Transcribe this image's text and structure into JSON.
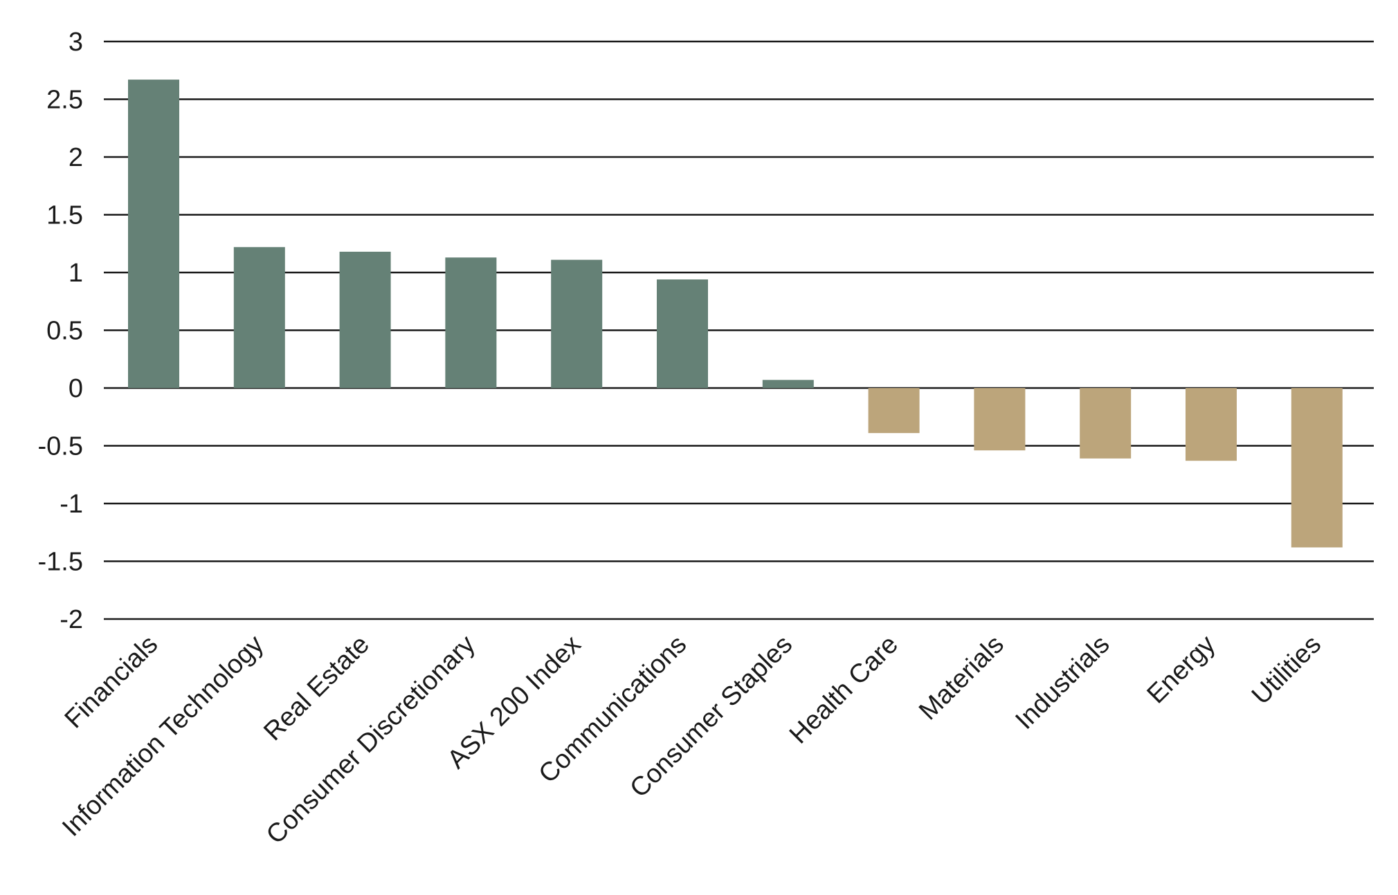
{
  "chart_data": {
    "type": "bar",
    "title": "",
    "xlabel": "",
    "ylabel": "",
    "ylim": [
      -2,
      3
    ],
    "yticks": [
      "3",
      "2.5",
      "2",
      "1.5",
      "1",
      "0.5",
      "0",
      "-0.5",
      "-1",
      "-1.5",
      "-2"
    ],
    "categories": [
      "Financials",
      "Information Technology",
      "Real Estate",
      "Consumer Discretionary",
      "ASX 200 Index",
      "Communications",
      "Consumer Staples",
      "Health Care",
      "Materials",
      "Industrials",
      "Energy",
      "Utilities"
    ],
    "values": [
      2.67,
      1.22,
      1.18,
      1.13,
      1.11,
      0.94,
      0.07,
      -0.39,
      -0.54,
      -0.61,
      -0.63,
      -1.38
    ],
    "grid": true,
    "legend": "none",
    "colors": {
      "positive": "#658176",
      "negative": "#BCA57B",
      "grid": "#1a1a1a",
      "text": "#1a1a1a"
    }
  }
}
